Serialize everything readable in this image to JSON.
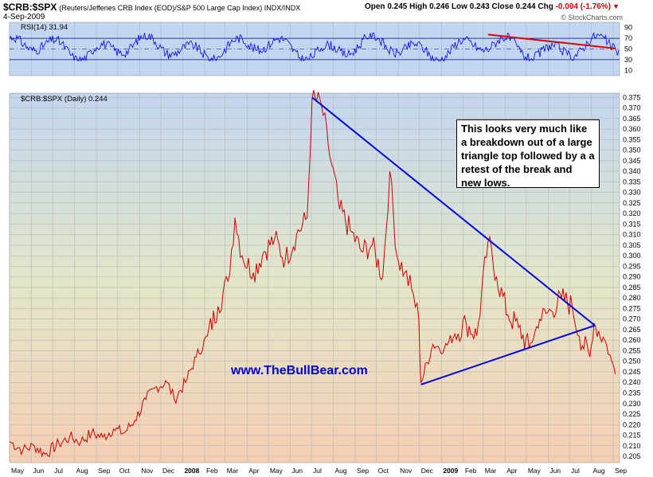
{
  "header": {
    "symbol": "$CRB:$SPX",
    "description": "(Reuters/Jefferies CRB Index (EOD)/S&P 500 Large Cap Index) INDX/INDX",
    "date": "4-Sep-2009",
    "open_label": "Open",
    "open": "0.245",
    "high_label": "High",
    "high": "0.246",
    "low_label": "Low",
    "low": "0.243",
    "close_label": "Close",
    "close": "0.244",
    "chg_label": "Chg",
    "chg": "-0.004 (-1.76%)",
    "brand": "© StockCharts.com"
  },
  "rsi": {
    "legend": "RSI(14) 31.94",
    "levels": [
      "90",
      "70",
      "50",
      "30",
      "10"
    ],
    "color": "#0000ee"
  },
  "annotation": "This looks very much like a breakdown out of a large triangle top followed by a a retest of the break and new lows.",
  "website": "www.TheBullBear.com",
  "chart_data": {
    "type": "line",
    "legend": "$CRB:$SPX (Daily) 0.244",
    "x_labels": [
      "May",
      "Jun",
      "Jul",
      "Aug",
      "Sep",
      "Oct",
      "Nov",
      "Dec",
      "2008",
      "Feb",
      "Mar",
      "Apr",
      "May",
      "Jun",
      "Jul",
      "Aug",
      "Sep",
      "Oct",
      "Nov",
      "Dec",
      "2009",
      "Feb",
      "Mar",
      "Apr",
      "May",
      "Jun",
      "Jul",
      "Aug",
      "Sep"
    ],
    "y_ticks": [
      "0.375",
      "0.370",
      "0.365",
      "0.360",
      "0.355",
      "0.350",
      "0.345",
      "0.340",
      "0.335",
      "0.330",
      "0.325",
      "0.320",
      "0.315",
      "0.310",
      "0.305",
      "0.300",
      "0.295",
      "0.290",
      "0.285",
      "0.280",
      "0.275",
      "0.270",
      "0.265",
      "0.260",
      "0.255",
      "0.250",
      "0.245",
      "0.240",
      "0.235",
      "0.230",
      "0.225",
      "0.220",
      "0.215",
      "0.210",
      "0.205"
    ],
    "ylim": [
      0.202,
      0.377
    ],
    "series": [
      {
        "values": [
          [
            "2007-05-01",
            0.212
          ],
          [
            "2007-05-20",
            0.208
          ],
          [
            "2007-06-05",
            0.21
          ],
          [
            "2007-06-20",
            0.206
          ],
          [
            "2007-07-10",
            0.211
          ],
          [
            "2007-07-25",
            0.214
          ],
          [
            "2007-08-10",
            0.212
          ],
          [
            "2007-08-25",
            0.216
          ],
          [
            "2007-09-10",
            0.214
          ],
          [
            "2007-09-25",
            0.218
          ],
          [
            "2007-10-10",
            0.216
          ],
          [
            "2007-10-25",
            0.222
          ],
          [
            "2007-11-10",
            0.232
          ],
          [
            "2007-11-25",
            0.238
          ],
          [
            "2007-12-10",
            0.24
          ],
          [
            "2007-12-20",
            0.232
          ],
          [
            "2008-01-05",
            0.24
          ],
          [
            "2008-01-20",
            0.252
          ],
          [
            "2008-02-05",
            0.262
          ],
          [
            "2008-02-20",
            0.276
          ],
          [
            "2008-03-05",
            0.288
          ],
          [
            "2008-03-15",
            0.318
          ],
          [
            "2008-03-25",
            0.3
          ],
          [
            "2008-04-10",
            0.292
          ],
          [
            "2008-04-25",
            0.302
          ],
          [
            "2008-05-10",
            0.308
          ],
          [
            "2008-05-25",
            0.298
          ],
          [
            "2008-06-10",
            0.31
          ],
          [
            "2008-06-25",
            0.318
          ],
          [
            "2008-07-02",
            0.374
          ],
          [
            "2008-07-15",
            0.372
          ],
          [
            "2008-07-25",
            0.352
          ],
          [
            "2008-08-10",
            0.322
          ],
          [
            "2008-08-25",
            0.312
          ],
          [
            "2008-09-10",
            0.302
          ],
          [
            "2008-09-25",
            0.305
          ],
          [
            "2008-10-10",
            0.29
          ],
          [
            "2008-10-20",
            0.34
          ],
          [
            "2008-10-30",
            0.3
          ],
          [
            "2008-11-10",
            0.292
          ],
          [
            "2008-11-20",
            0.284
          ],
          [
            "2008-11-30",
            0.27
          ],
          [
            "2008-12-03",
            0.24
          ],
          [
            "2008-12-20",
            0.258
          ],
          [
            "2009-01-05",
            0.256
          ],
          [
            "2009-01-20",
            0.263
          ],
          [
            "2009-02-05",
            0.268
          ],
          [
            "2009-02-20",
            0.262
          ],
          [
            "2009-03-08",
            0.307
          ],
          [
            "2009-03-20",
            0.29
          ],
          [
            "2009-04-05",
            0.272
          ],
          [
            "2009-04-20",
            0.266
          ],
          [
            "2009-05-05",
            0.256
          ],
          [
            "2009-05-20",
            0.27
          ],
          [
            "2009-06-05",
            0.274
          ],
          [
            "2009-06-20",
            0.28
          ],
          [
            "2009-07-05",
            0.276
          ],
          [
            "2009-07-15",
            0.262
          ],
          [
            "2009-07-30",
            0.252
          ],
          [
            "2009-08-05",
            0.268
          ],
          [
            "2009-08-20",
            0.26
          ],
          [
            "2009-08-30",
            0.25
          ],
          [
            "2009-09-04",
            0.244
          ]
        ]
      }
    ],
    "trendlines": [
      {
        "from": [
          "2008-07-02",
          0.375
        ],
        "to": [
          "2009-08-06",
          0.267
        ],
        "color": "#0000dd"
      },
      {
        "from": [
          "2008-12-03",
          0.239
        ],
        "to": [
          "2009-08-06",
          0.267
        ],
        "color": "#0000dd"
      },
      {
        "from": [
          "2009-03-08",
          77
        ],
        "to": [
          "2009-09-04",
          51
        ],
        "color": "#dd0000",
        "pane": "rsi"
      }
    ],
    "grid": true
  }
}
